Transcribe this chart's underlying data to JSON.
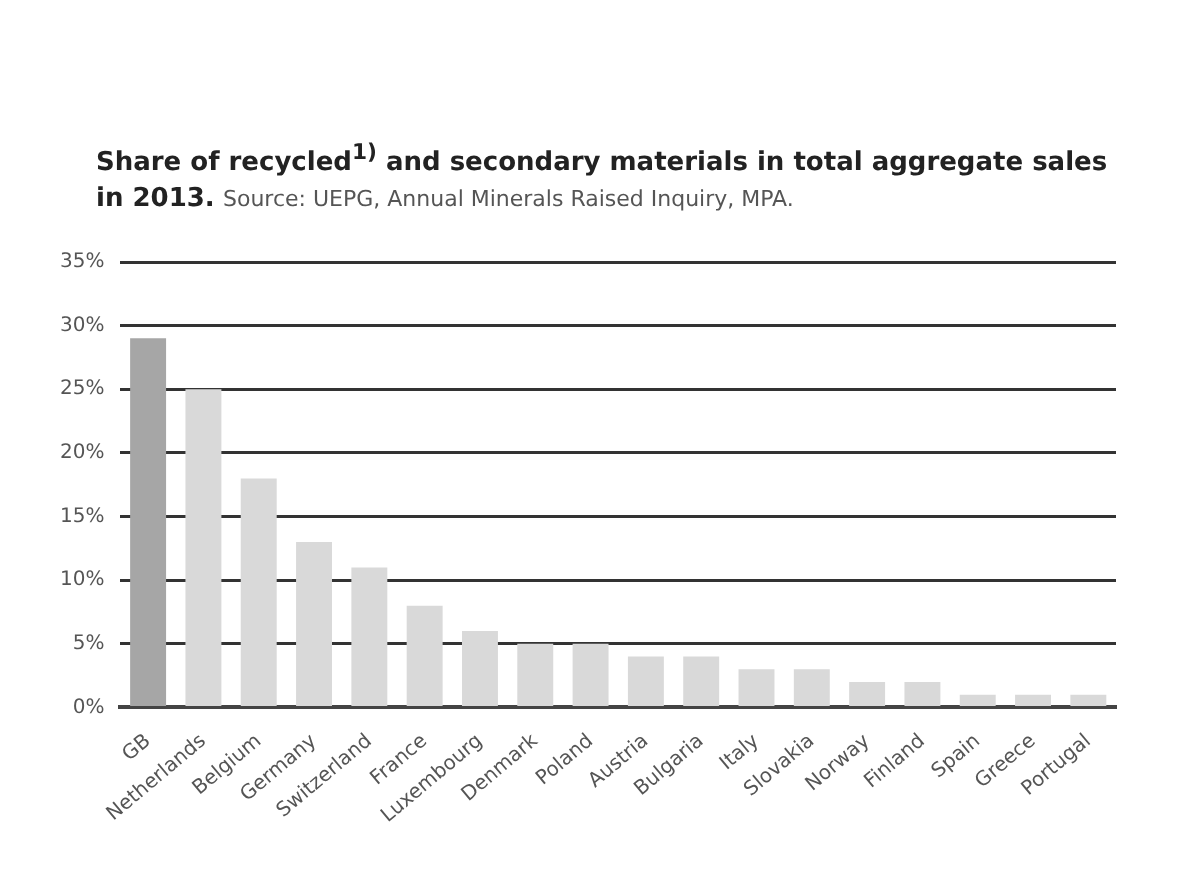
{
  "chart_data": {
    "type": "bar",
    "title": "Share of recycled$^{1)}$ and secondary materials in total aggregate sales in 2013.",
    "annotations": [
      "Source: UEPG, Annual Minerals Raised Inquiry, MPA."
    ],
    "categories": [
      "GB",
      "Netherlands",
      "Belgium",
      "Germany",
      "Switzerland",
      "France",
      "Luxembourg",
      "Denmark",
      "Poland",
      "Austria",
      "Bulgaria",
      "Italy",
      "Slovakia",
      "Norway",
      "Finland",
      "Spain",
      "Greece",
      "Portugal"
    ],
    "values": [
      29,
      25,
      18,
      13,
      11,
      8,
      6,
      5,
      5,
      4,
      4,
      3,
      3,
      2,
      2,
      1,
      1,
      1
    ],
    "colors": [
      "#a6a6a6",
      "#d9d9d9",
      "#d9d9d9",
      "#d9d9d9",
      "#d9d9d9",
      "#d9d9d9",
      "#d9d9d9",
      "#d9d9d9",
      "#d9d9d9",
      "#d9d9d9",
      "#d9d9d9",
      "#d9d9d9",
      "#d9d9d9",
      "#d9d9d9",
      "#d9d9d9",
      "#d9d9d9",
      "#d9d9d9",
      "#d9d9d9"
    ],
    "ylim": [
      0,
      35
    ],
    "yticks": [
      {
        "value": 0,
        "label": "0%"
      },
      {
        "value": 5,
        "label": "5%"
      },
      {
        "value": 10,
        "label": "10%"
      },
      {
        "value": 15,
        "label": "15%"
      },
      {
        "value": 20,
        "label": "20%"
      },
      {
        "value": 25,
        "label": "25%"
      },
      {
        "value": 30,
        "label": "30%"
      },
      {
        "value": 35,
        "label": "35%"
      }
    ],
    "grid": "y",
    "legend": false
  }
}
